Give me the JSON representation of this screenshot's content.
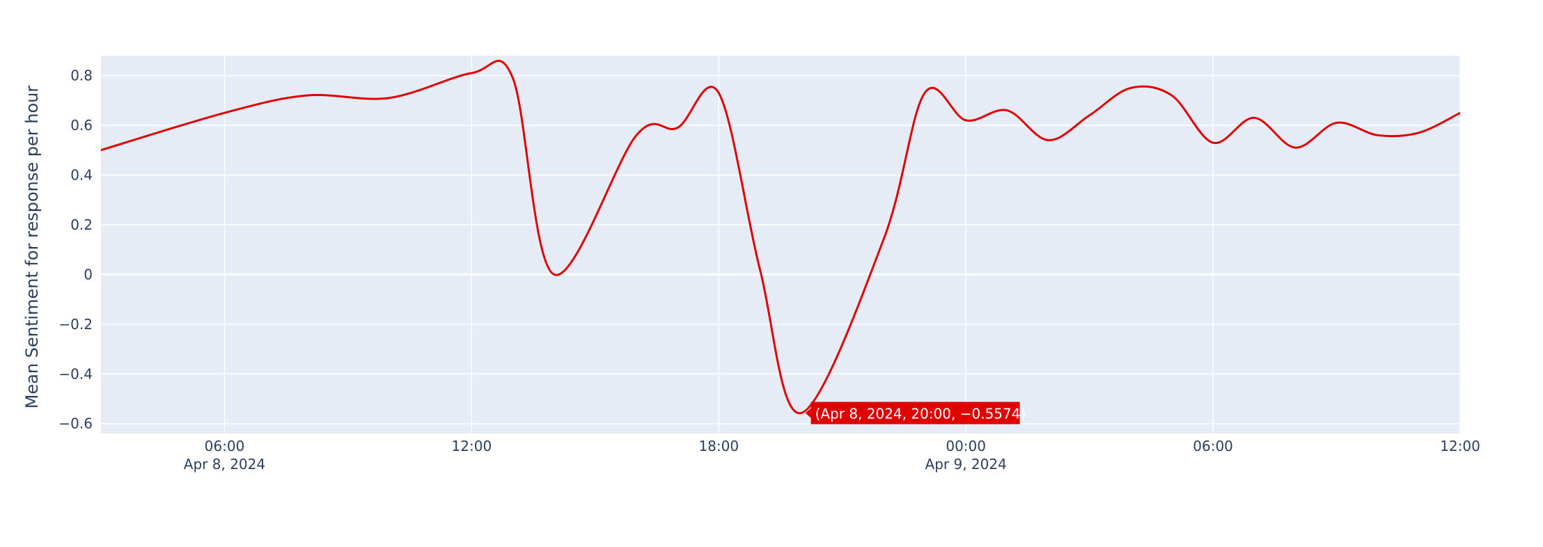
{
  "chart_data": {
    "type": "line",
    "title": "",
    "xlabel": "",
    "ylabel": "Mean Sentiment for response per hour",
    "x_range": [
      "2024-04-08T03:00",
      "2024-04-09T12:00"
    ],
    "ylim": [
      -0.64,
      0.88
    ],
    "x_ticks": [
      {
        "t": "2024-04-08T06:00",
        "label": "06:00",
        "sublabel": "Apr 8, 2024"
      },
      {
        "t": "2024-04-08T12:00",
        "label": "12:00",
        "sublabel": ""
      },
      {
        "t": "2024-04-08T18:00",
        "label": "18:00",
        "sublabel": ""
      },
      {
        "t": "2024-04-09T00:00",
        "label": "00:00",
        "sublabel": "Apr 9, 2024"
      },
      {
        "t": "2024-04-09T06:00",
        "label": "06:00",
        "sublabel": ""
      },
      {
        "t": "2024-04-09T12:00",
        "label": "12:00",
        "sublabel": ""
      }
    ],
    "y_ticks": [
      {
        "value": 0.8,
        "label": "0.8"
      },
      {
        "value": 0.6,
        "label": "0.6"
      },
      {
        "value": 0.4,
        "label": "0.4"
      },
      {
        "value": 0.2,
        "label": "0.2"
      },
      {
        "value": 0,
        "label": "0"
      },
      {
        "value": -0.2,
        "label": "−0.2"
      },
      {
        "value": -0.4,
        "label": "−0.4"
      },
      {
        "value": -0.6,
        "label": "−0.6"
      }
    ],
    "grid": true,
    "series": [
      {
        "color": "#e00000",
        "x": [
          "2024-04-08T03:00",
          "2024-04-08T06:00",
          "2024-04-08T08:00",
          "2024-04-08T10:00",
          "2024-04-08T12:00",
          "2024-04-08T13:00",
          "2024-04-08T14:00",
          "2024-04-08T16:00",
          "2024-04-08T17:00",
          "2024-04-08T18:00",
          "2024-04-08T19:00",
          "2024-04-08T20:00",
          "2024-04-08T22:00",
          "2024-04-08T23:00",
          "2024-04-09T00:00",
          "2024-04-09T01:00",
          "2024-04-09T02:00",
          "2024-04-09T03:00",
          "2024-04-09T04:00",
          "2024-04-09T05:00",
          "2024-04-09T06:00",
          "2024-04-09T07:00",
          "2024-04-09T08:00",
          "2024-04-09T09:00",
          "2024-04-09T10:00",
          "2024-04-09T11:00",
          "2024-04-09T12:00"
        ],
        "y": [
          0.5,
          0.65,
          0.72,
          0.71,
          0.81,
          0.79,
          0.0,
          0.56,
          0.59,
          0.73,
          0.02,
          -0.5574,
          0.14,
          0.73,
          0.62,
          0.66,
          0.54,
          0.64,
          0.75,
          0.72,
          0.53,
          0.63,
          0.51,
          0.61,
          0.56,
          0.57,
          0.65
        ]
      }
    ],
    "hover": {
      "x": "2024-04-08T20:00",
      "y": -0.5574,
      "label": "(Apr 8, 2024, 20:00, −0.5574)",
      "color": "#e00000"
    }
  }
}
